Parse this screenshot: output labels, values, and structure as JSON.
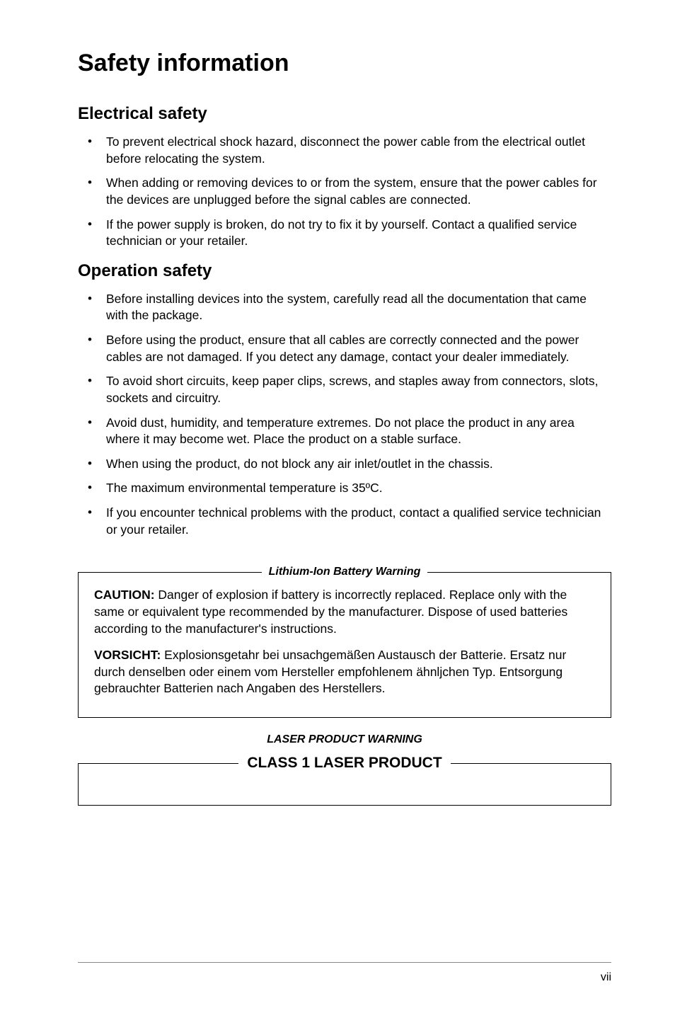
{
  "title": "Safety information",
  "electrical": {
    "heading": "Electrical safety",
    "items": [
      "To prevent electrical shock hazard, disconnect the power cable from the electrical outlet before relocating the system.",
      "When adding or removing devices to or from the system, ensure that the power cables for the devices are unplugged before the signal cables are connected.",
      "If the power supply is broken, do not try to fix it by yourself. Contact a qualified service technician or your retailer."
    ]
  },
  "operation": {
    "heading": "Operation safety",
    "items": [
      "Before installing devices into the system, carefully read all the documentation that came with the package.",
      "Before using the product, ensure that all cables are correctly connected and the power cables are not damaged. If you detect any damage, contact your dealer immediately.",
      "To avoid short circuits, keep paper clips, screws, and staples away from connectors, slots, sockets and circuitry.",
      "Avoid dust, humidity, and temperature extremes. Do not place the product in any area where it may become wet. Place the product on a stable surface.",
      "When using the product, do not block any air inlet/outlet in the chassis.",
      "The maximum environmental temperature is 35ºC.",
      "If you encounter technical problems with the product, contact a qualified service technician or your retailer."
    ]
  },
  "lithium": {
    "label": "Lithium-Ion Battery Warning",
    "caution_label": "CAUTION:",
    "caution_text": " Danger of explosion if battery is incorrectly replaced. Replace only with the same or equivalent type recommended by the manufacturer. Dispose of used batteries according to the manufacturer's instructions.",
    "vorsicht_label": "VORSICHT:",
    "vorsicht_text": " Explosionsgetahr bei unsachgemäßen Austausch der Batterie. Ersatz nur durch denselben oder einem vom Hersteller empfohlenem ähnljchen Typ. Entsorgung gebrauchter Batterien nach Angaben des Herstellers."
  },
  "laser": {
    "label1": "LASER PRODUCT WARNING",
    "label2": "CLASS 1 LASER PRODUCT"
  },
  "footer": {
    "page": "vii"
  },
  "style": {
    "background_color": "#ffffff",
    "text_color": "#000000",
    "title_fontsize": 34,
    "heading_fontsize": 24,
    "body_fontsize": 17.5,
    "warning_label_fontsize": 16,
    "laser_label2_fontsize": 21,
    "border_color": "#000000",
    "footer_rule_color": "#888888"
  }
}
